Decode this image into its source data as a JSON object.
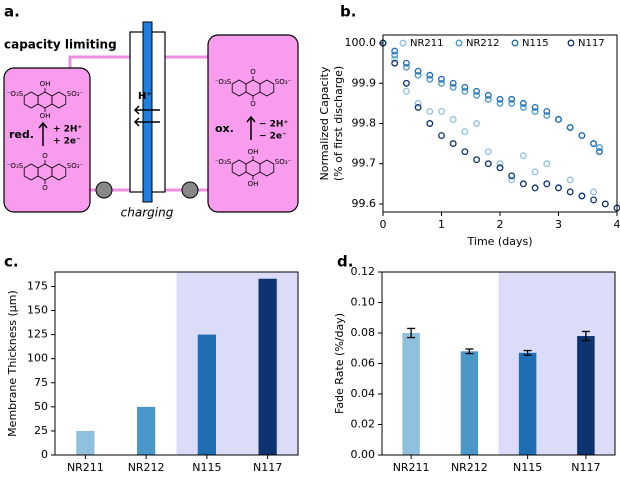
{
  "diagram": {
    "panel_label": "a.",
    "title": "capacity limiting",
    "left_label": "red.",
    "left_reaction": [
      "+ 2H⁺",
      "+ 2e⁻"
    ],
    "right_label": "ox.",
    "right_reaction": [
      "− 2H⁺",
      "− 2e⁻"
    ],
    "membrane_label": "H⁺",
    "cell_label": "charging",
    "structures": [
      {
        "top": "OH",
        "bottom": "OH",
        "left": "⁻O₃S",
        "right": "SO₃⁻"
      },
      {
        "top": "O",
        "bottom": "O",
        "left": "⁻O₃S",
        "right": "SO₃⁻"
      },
      {
        "top": "O",
        "bottom": "O",
        "left": "⁻O₃S",
        "right": "SO₃⁻"
      },
      {
        "top": "OH",
        "bottom": "OH",
        "left": "⁻O₃S",
        "right": "SO₃⁻"
      }
    ]
  },
  "chart_data": [
    {
      "type": "scatter",
      "panel_label": "b.",
      "xlabel": "Time (days)",
      "ylabel": [
        "Normalized Capacity",
        "(% of first discharge)"
      ],
      "xlim": [
        0,
        4
      ],
      "xticks": [
        0,
        1,
        2,
        3,
        4
      ],
      "ylim": [
        99.58,
        100.02
      ],
      "yticks": [
        99.6,
        99.7,
        99.8,
        99.9,
        {
          "value": 100,
          "label": "100.0"
        }
      ],
      "legend": "upper center",
      "series": [
        {
          "name": "NR211",
          "color": "#8fc1de",
          "x": [
            0,
            0.2,
            0.4,
            0.6,
            0.8,
            1.0,
            1.2,
            1.4,
            1.6,
            1.8,
            2.0,
            2.2,
            2.4,
            2.6,
            2.8,
            3.0,
            3.2,
            3.4,
            3.6,
            3.8
          ],
          "values": [
            100.0,
            99.96,
            99.88,
            99.85,
            99.83,
            99.83,
            99.81,
            99.78,
            99.8,
            99.73,
            99.7,
            99.66,
            99.72,
            99.68,
            99.7,
            99.64,
            99.66,
            99.62,
            99.63,
            99.6
          ]
        },
        {
          "name": "NR212",
          "color": "#4a98c9",
          "x": [
            0,
            0.2,
            0.4,
            0.6,
            0.8,
            1.0,
            1.2,
            1.4,
            1.6,
            1.8,
            2.0,
            2.2,
            2.4,
            2.6,
            2.8,
            3.0,
            3.2,
            3.4,
            3.6,
            3.7
          ],
          "values": [
            100.0,
            99.97,
            99.94,
            99.92,
            99.91,
            99.9,
            99.89,
            99.88,
            99.87,
            99.86,
            99.85,
            99.85,
            99.84,
            99.83,
            99.82,
            99.81,
            99.79,
            99.77,
            99.75,
            99.74
          ]
        },
        {
          "name": "N115",
          "color": "#1f6eb3",
          "x": [
            0,
            0.2,
            0.4,
            0.6,
            0.8,
            1.0,
            1.2,
            1.4,
            1.6,
            1.8,
            2.0,
            2.2,
            2.4,
            2.6,
            2.8,
            3.0,
            3.2,
            3.4,
            3.6,
            3.7
          ],
          "values": [
            100.0,
            99.98,
            99.95,
            99.93,
            99.92,
            99.91,
            99.9,
            99.89,
            99.88,
            99.87,
            99.86,
            99.86,
            99.85,
            99.84,
            99.83,
            99.81,
            99.79,
            99.77,
            99.75,
            99.73
          ]
        },
        {
          "name": "N117",
          "color": "#0d3370",
          "x": [
            0,
            0.2,
            0.4,
            0.6,
            0.8,
            1.0,
            1.2,
            1.4,
            1.6,
            1.8,
            2.0,
            2.2,
            2.4,
            2.6,
            2.8,
            3.0,
            3.2,
            3.4,
            3.6,
            3.8,
            4.0
          ],
          "values": [
            100.0,
            99.95,
            99.9,
            99.84,
            99.8,
            99.77,
            99.75,
            99.73,
            99.71,
            99.7,
            99.69,
            99.67,
            99.65,
            99.64,
            99.65,
            99.64,
            99.63,
            99.62,
            99.61,
            99.6,
            99.59
          ]
        }
      ]
    },
    {
      "type": "bar",
      "panel_label": "c.",
      "ylabel": "Membrane Thickness (µm)",
      "categories": [
        "NR211",
        "NR212",
        "N115",
        "N117"
      ],
      "values": [
        25,
        50,
        125,
        183
      ],
      "colors": [
        "#8fc1de",
        "#4a98c9",
        "#1f6eb3",
        "#0d3370"
      ],
      "ylim": [
        0,
        190
      ],
      "yticks": [
        0,
        25,
        50,
        75,
        100,
        125,
        150,
        175
      ],
      "shade": {
        "start": 2,
        "color": "#dcdcf8"
      }
    },
    {
      "type": "bar",
      "panel_label": "d.",
      "ylabel": "Fade Rate (%/day)",
      "categories": [
        "NR211",
        "NR212",
        "N115",
        "N117"
      ],
      "values": [
        0.08,
        0.068,
        0.067,
        0.078
      ],
      "errors": [
        0.003,
        0.0015,
        0.0015,
        0.003
      ],
      "colors": [
        "#8fc1de",
        "#4a98c9",
        "#1f6eb3",
        "#0d3370"
      ],
      "ylim": [
        0,
        0.12
      ],
      "yticks": [
        {
          "value": 0,
          "label": "0.00"
        },
        {
          "value": 0.02,
          "label": "0.02"
        },
        {
          "value": 0.04,
          "label": "0.04"
        },
        {
          "value": 0.06,
          "label": "0.06"
        },
        {
          "value": 0.08,
          "label": "0.08"
        },
        {
          "value": 0.1,
          "label": "0.10"
        },
        {
          "value": 0.12,
          "label": "0.12"
        }
      ],
      "shade": {
        "start": 2,
        "color": "#dcdcf8"
      }
    }
  ]
}
